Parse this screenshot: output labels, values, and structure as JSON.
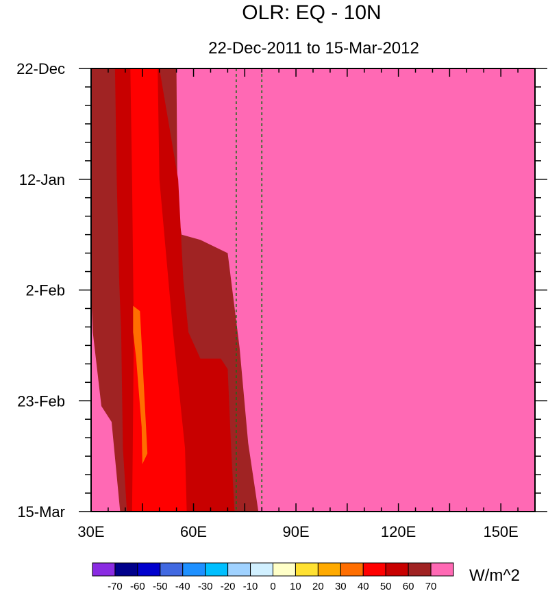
{
  "chart_data": {
    "type": "heatmap",
    "title": "OLR: EQ - 10N",
    "subtitle": "22-Dec-2011 to 15-Mar-2012",
    "xlabel": "",
    "ylabel": "",
    "x_range": [
      30,
      160
    ],
    "x_ticks": [
      30,
      60,
      90,
      120,
      150
    ],
    "x_tick_labels": [
      "30E",
      "60E",
      "90E",
      "120E",
      "150E"
    ],
    "y_range_days": [
      0,
      84
    ],
    "y_ticks_days": [
      0,
      21,
      42,
      63,
      84
    ],
    "y_tick_labels": [
      "22-Dec",
      "12-Jan",
      "2-Feb",
      "23-Feb",
      "15-Mar"
    ],
    "reference_lines_lon": [
      72.5,
      80
    ],
    "colorbar": {
      "units": "W/m^2",
      "labels": [
        "-70",
        "-60",
        "-50",
        "-40",
        "-30",
        "-20",
        "-10",
        "0",
        "10",
        "20",
        "30",
        "40",
        "50",
        "60",
        "70"
      ],
      "colors": [
        "#8A2BE2",
        "#00008B",
        "#0000CD",
        "#4169E1",
        "#1E90FF",
        "#00BFFF",
        "#A0D2FF",
        "#D1F0FF",
        "#FFFFC8",
        "#FFE132",
        "#FFAA00",
        "#FF6E00",
        "#FF0000",
        "#C80000",
        "#A02323",
        "#FF69B4"
      ]
    },
    "contours": [
      {
        "level_range": "60-70",
        "color": "#A02323",
        "boundary": [
          [
            30,
            42
          ],
          [
            30.5,
            50
          ],
          [
            33,
            64
          ],
          [
            36,
            67
          ],
          [
            38.5,
            84
          ],
          [
            79,
            84
          ],
          [
            76,
            71
          ],
          [
            73.5,
            53
          ],
          [
            70,
            35
          ],
          [
            62,
            32.5
          ],
          [
            56.5,
            31.5
          ],
          [
            55.3,
            26.5
          ],
          [
            55,
            0
          ],
          [
            30,
            0
          ]
        ]
      },
      {
        "level_range": "50-60",
        "color": "#C80000",
        "boundary": [
          [
            40.5,
            84
          ],
          [
            72,
            84
          ],
          [
            71,
            72
          ],
          [
            70,
            57
          ],
          [
            68,
            55
          ],
          [
            62,
            55
          ],
          [
            58.5,
            50
          ],
          [
            57,
            40
          ],
          [
            55.5,
            21
          ],
          [
            50,
            0
          ],
          [
            37,
            0
          ],
          [
            37.5,
            21
          ],
          [
            38.2,
            40
          ],
          [
            38.8,
            50
          ],
          [
            39.3,
            72
          ]
        ]
      },
      {
        "level_range": "40-50",
        "color": "#FF0000",
        "boundary": [
          [
            42,
            84
          ],
          [
            58,
            84
          ],
          [
            57.5,
            72
          ],
          [
            54,
            50
          ],
          [
            50,
            21
          ],
          [
            49.5,
            0
          ],
          [
            41.5,
            0
          ],
          [
            42,
            21
          ],
          [
            42.5,
            50
          ],
          [
            42.2,
            72
          ]
        ]
      },
      {
        "level_range": "30-40",
        "color": "#FF6E00",
        "boundary": [
          [
            42.3,
            45
          ],
          [
            44.3,
            46
          ],
          [
            46.5,
            73
          ],
          [
            45,
            75
          ],
          [
            44.8,
            68
          ],
          [
            43.2,
            55
          ],
          [
            42.3,
            50
          ]
        ]
      }
    ]
  }
}
